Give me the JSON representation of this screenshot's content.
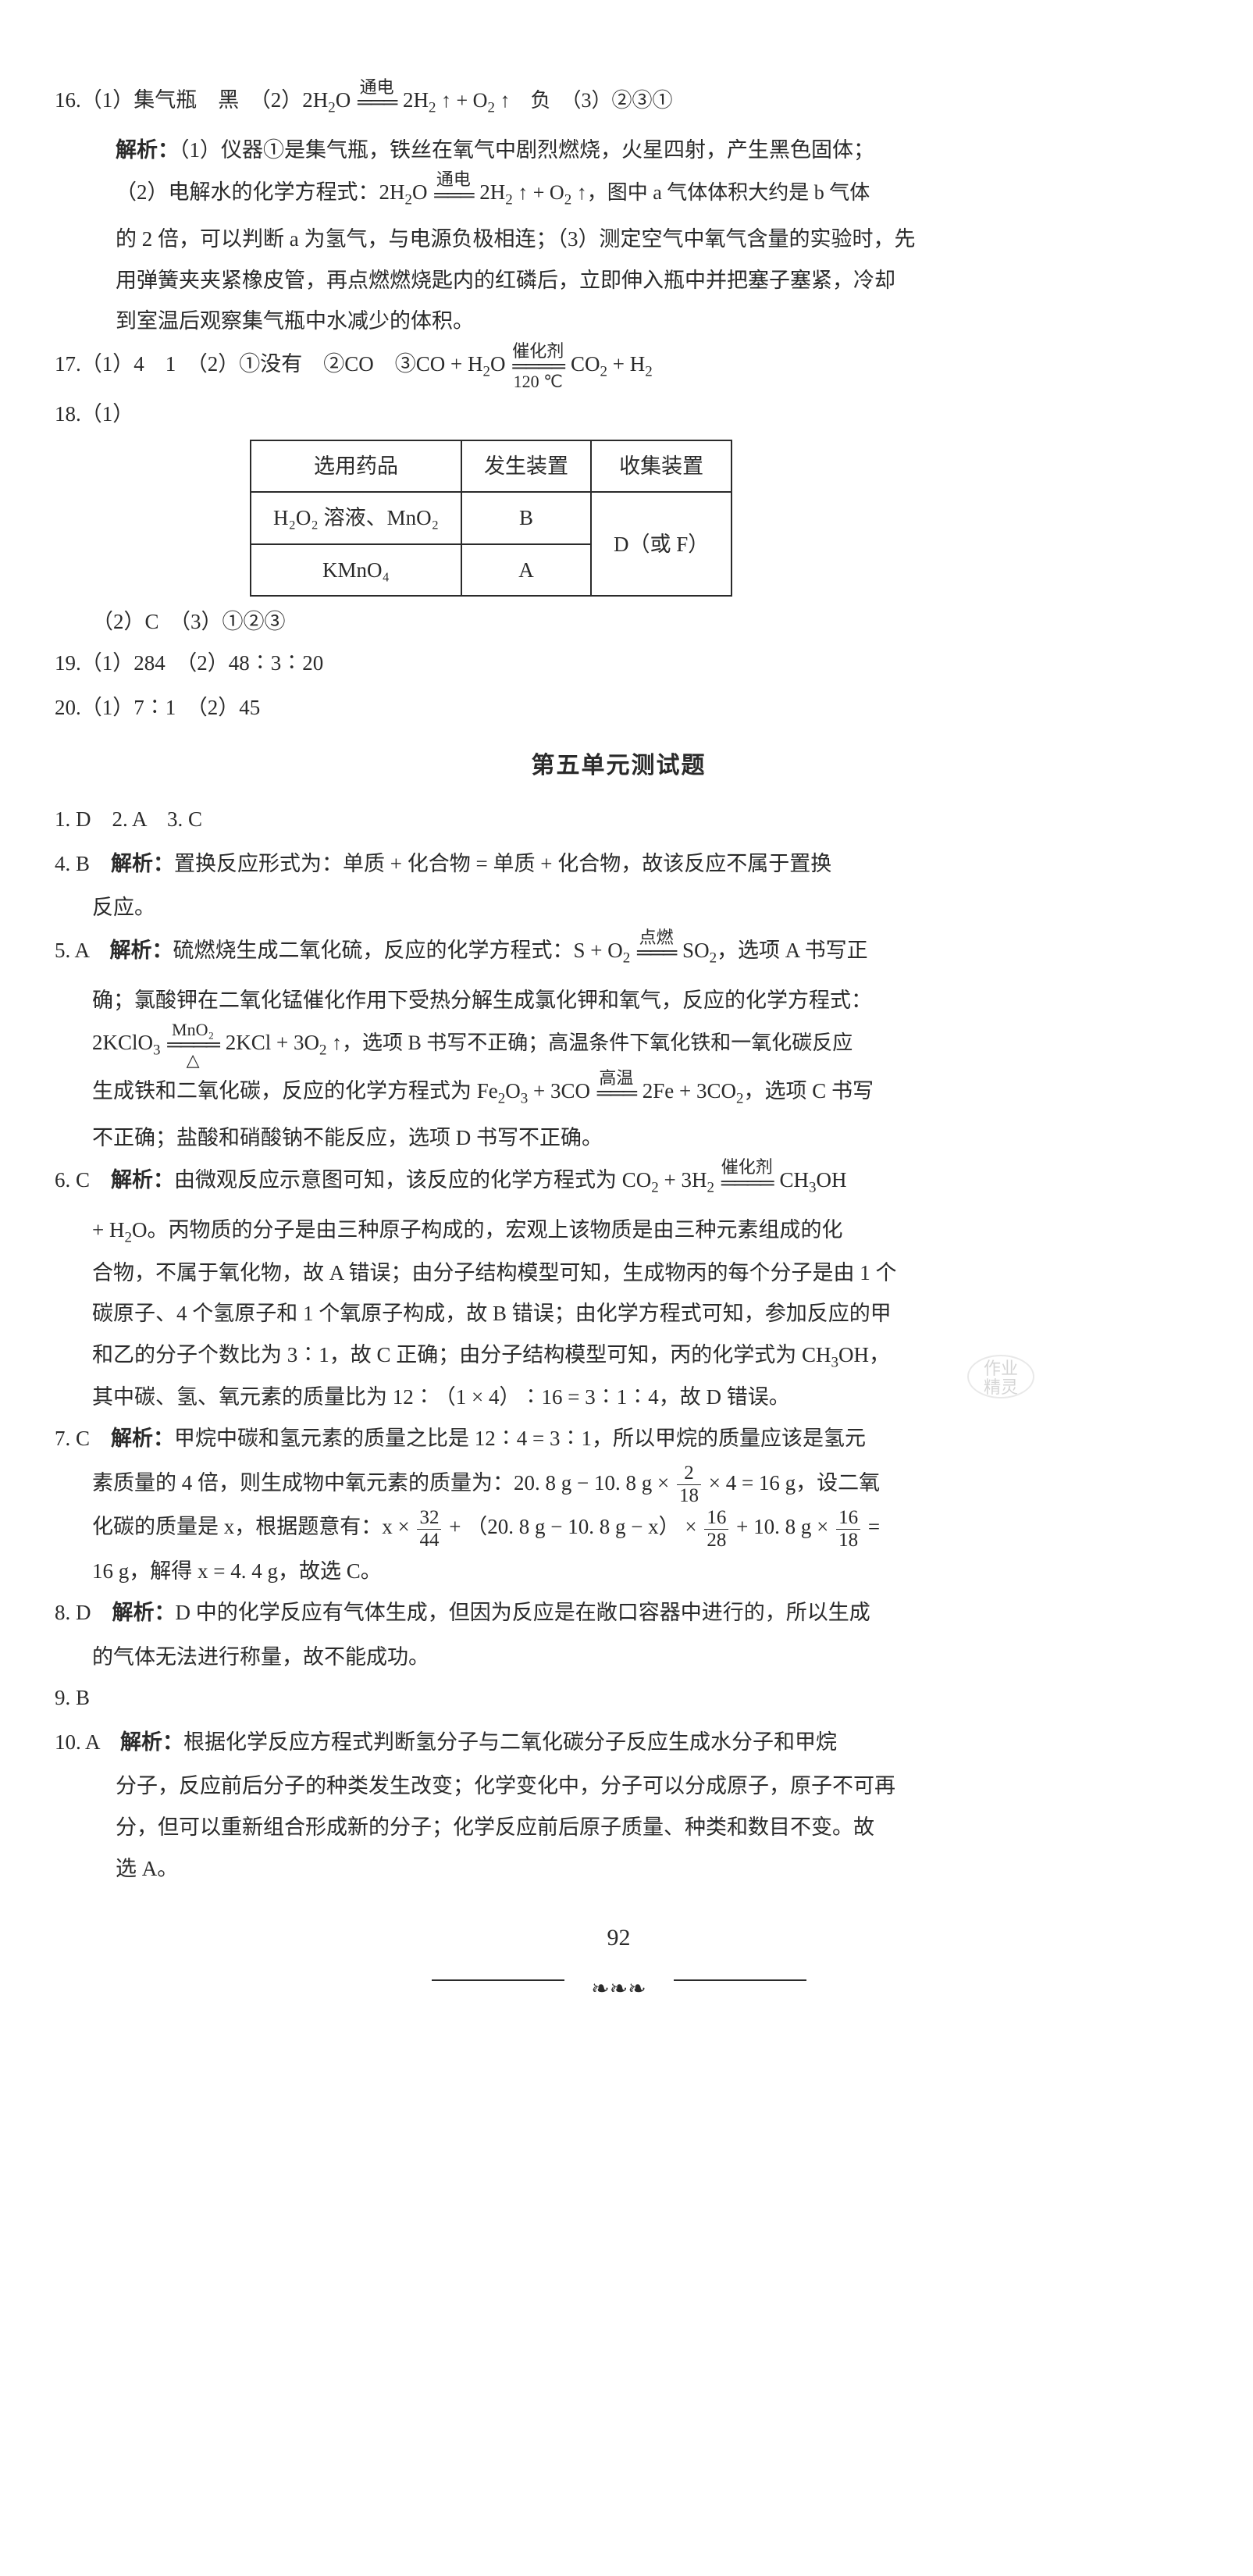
{
  "colors": {
    "text": "#2a2a2a",
    "background": "#ffffff",
    "border": "#2a2a2a"
  },
  "typography": {
    "base_fontsize": 27,
    "sub_fontsize": 19,
    "line_height": 1.95,
    "font_family": "SimSun"
  },
  "q16": {
    "line1_a": "16.（1）集气瓶　黑　（2）2H",
    "line1_b": "O",
    "eq1_above": "通电",
    "line1_c": "2H",
    "line1_d": " ↑ + O",
    "line1_e": " ↑　负　（3）②③①",
    "exp_label": "解析：",
    "exp1": "（1）仪器①是集气瓶，铁丝在氧气中剧烈燃烧，火星四射，产生黑色固体；",
    "exp2a": "（2）电解水的化学方程式：2H",
    "exp2b": "O",
    "eq2_above": "通电",
    "exp2c": "2H",
    "exp2d": " ↑ + O",
    "exp2e": " ↑，图中 a 气体体积大约是 b 气体",
    "exp3": "的 2 倍，可以判断 a 为氢气，与电源负极相连；（3）测定空气中氧气含量的实验时，先",
    "exp4": "用弹簧夹夹紧橡皮管，再点燃燃烧匙内的红磷后，立即伸入瓶中并把塞子塞紧，冷却",
    "exp5": "到室温后观察集气瓶中水减少的体积。"
  },
  "q17": {
    "part_a": "17.（1）4　1　（2）①没有　②CO　③CO + H",
    "part_b": "O",
    "eq_above": "催化剂",
    "eq_below": "120 ℃",
    "part_c": "CO",
    "part_d": " + H"
  },
  "q18": {
    "head": "18.（1）",
    "table": {
      "columns": [
        "选用药品",
        "发生装置",
        "收集装置"
      ],
      "rows": [
        [
          "H₂O₂ 溶液、MnO₂",
          "B"
        ],
        [
          "KMnO₄",
          "A"
        ]
      ],
      "merged_cell": "D（或 F）"
    },
    "tail": "（2）C　（3）①②③"
  },
  "q19": "19.（1）284　（2）48∶3∶20",
  "q20": "20.（1）7∶1　（2）45",
  "section_title": "第五单元测试题",
  "q1to3": "1. D　2. A　3. C",
  "q4": {
    "head": "4. B　",
    "exp_label": "解析：",
    "t1": "置换反应形式为：单质 + 化合物 = 单质 + 化合物，故该反应不属于置换",
    "t2": "反应。"
  },
  "q5": {
    "head": "5. A　",
    "exp_label": "解析：",
    "t1a": "硫燃烧生成二氧化硫，反应的化学方程式：S + O",
    "eq1_above": "点燃",
    "t1b": "SO",
    "t1c": "，选项 A 书写正",
    "t2": "确；氯酸钾在二氧化锰催化作用下受热分解生成氯化钾和氧气，反应的化学方程式：",
    "t3a": "2KClO",
    "eq2_above": "MnO₂",
    "eq2_below": "△",
    "t3b": "2KCl + 3O",
    "t3c": " ↑，选项 B 书写不正确；高温条件下氧化铁和一氧化碳反应",
    "t4a": "生成铁和二氧化碳，反应的化学方程式为 Fe",
    "t4b": "O",
    "t4c": " + 3CO",
    "eq3_above": "高温",
    "t4d": "2Fe + 3CO",
    "t4e": "，选项 C 书写",
    "t5": "不正确；盐酸和硝酸钠不能反应，选项 D 书写不正确。"
  },
  "q6": {
    "head": "6. C　",
    "exp_label": "解析：",
    "t1a": "由微观反应示意图可知，该反应的化学方程式为 CO",
    "t1b": " + 3H",
    "eq_above": "催化剂",
    "t1c": "CH",
    "t1d": "OH",
    "t2a": " + H",
    "t2b": "O。丙物质的分子是由三种原子构成的，宏观上该物质是由三种元素组成的化",
    "t3": "合物，不属于氧化物，故 A 错误；由分子结构模型可知，生成物丙的每个分子是由 1 个",
    "t4": "碳原子、4 个氢原子和 1 个氧原子构成，故 B 错误；由化学方程式可知，参加反应的甲",
    "t5": "和乙的分子个数比为 3∶1，故 C 正确；由分子结构模型可知，丙的化学式为 CH",
    "t5b": "OH，",
    "t6": "其中碳、氢、氧元素的质量比为 12∶（1 × 4）∶16 = 3∶1∶4，故 D 错误。"
  },
  "q7": {
    "head": "7. C　",
    "exp_label": "解析：",
    "t1": "甲烷中碳和氢元素的质量之比是 12∶4 = 3∶1，所以甲烷的质量应该是氢元",
    "t2a": "素质量的 4 倍，则生成物中氧元素的质量为：20. 8 g − 10. 8 g ×",
    "f1_top": "2",
    "f1_bot": "18",
    "t2b": " × 4 = 16 g，设二氧",
    "t3a": "化碳的质量是 x，根据题意有：x ×",
    "f2_top": "32",
    "f2_bot": "44",
    "t3b": " + （20. 8 g − 10. 8 g − x） ×",
    "f3_top": "16",
    "f3_bot": "28",
    "t3c": " + 10. 8 g ×",
    "f4_top": "16",
    "f4_bot": "18",
    "t3d": " =",
    "t4": "16 g，解得 x = 4. 4 g，故选 C。"
  },
  "q8": {
    "head": "8. D　",
    "exp_label": "解析：",
    "t1": "D 中的化学反应有气体生成，但因为反应是在敞口容器中进行的，所以生成",
    "t2": "的气体无法进行称量，故不能成功。"
  },
  "q9": "9. B",
  "q10": {
    "head": "10. A　",
    "exp_label": "解析：",
    "t1": "根据化学反应方程式判断氢分子与二氧化碳分子反应生成水分子和甲烷",
    "t2": "分子，反应前后分子的种类发生改变；化学变化中，分子可以分成原子，原子不可再",
    "t3": "分，但可以重新组合形成新的分子；化学反应前后原子质量、种类和数目不变。故",
    "t4": "选 A。"
  },
  "page_number": "92",
  "watermark_top": "作业",
  "watermark_bot": "精灵",
  "footer_leaf": "❧❧❧"
}
